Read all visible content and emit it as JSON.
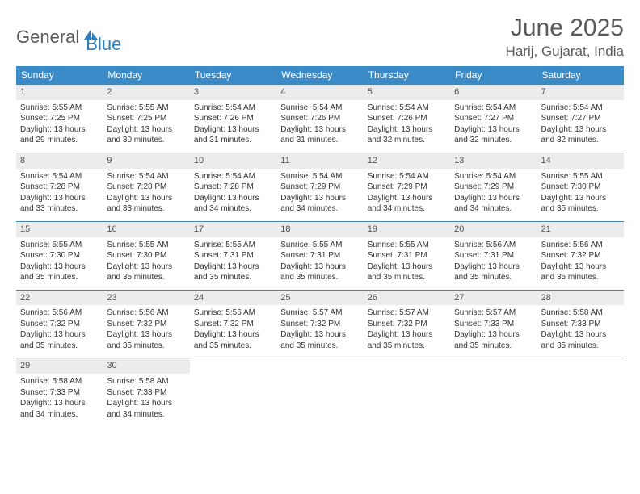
{
  "logo": {
    "general": "General",
    "blue": "Blue",
    "icon_color": "#2f7fbf"
  },
  "title": "June 2025",
  "location": "Harij, Gujarat, India",
  "colors": {
    "header_bg": "#3b8bc9",
    "header_text": "#ffffff",
    "daynum_bg": "#ececec",
    "row_border": "#4a7fa8",
    "text": "#333333",
    "title_text": "#5a5a5a"
  },
  "day_headers": [
    "Sunday",
    "Monday",
    "Tuesday",
    "Wednesday",
    "Thursday",
    "Friday",
    "Saturday"
  ],
  "weeks": [
    [
      {
        "day": 1,
        "sunrise": "5:55 AM",
        "sunset": "7:25 PM",
        "daylight": "13 hours and 29 minutes."
      },
      {
        "day": 2,
        "sunrise": "5:55 AM",
        "sunset": "7:25 PM",
        "daylight": "13 hours and 30 minutes."
      },
      {
        "day": 3,
        "sunrise": "5:54 AM",
        "sunset": "7:26 PM",
        "daylight": "13 hours and 31 minutes."
      },
      {
        "day": 4,
        "sunrise": "5:54 AM",
        "sunset": "7:26 PM",
        "daylight": "13 hours and 31 minutes."
      },
      {
        "day": 5,
        "sunrise": "5:54 AM",
        "sunset": "7:26 PM",
        "daylight": "13 hours and 32 minutes."
      },
      {
        "day": 6,
        "sunrise": "5:54 AM",
        "sunset": "7:27 PM",
        "daylight": "13 hours and 32 minutes."
      },
      {
        "day": 7,
        "sunrise": "5:54 AM",
        "sunset": "7:27 PM",
        "daylight": "13 hours and 32 minutes."
      }
    ],
    [
      {
        "day": 8,
        "sunrise": "5:54 AM",
        "sunset": "7:28 PM",
        "daylight": "13 hours and 33 minutes."
      },
      {
        "day": 9,
        "sunrise": "5:54 AM",
        "sunset": "7:28 PM",
        "daylight": "13 hours and 33 minutes."
      },
      {
        "day": 10,
        "sunrise": "5:54 AM",
        "sunset": "7:28 PM",
        "daylight": "13 hours and 34 minutes."
      },
      {
        "day": 11,
        "sunrise": "5:54 AM",
        "sunset": "7:29 PM",
        "daylight": "13 hours and 34 minutes."
      },
      {
        "day": 12,
        "sunrise": "5:54 AM",
        "sunset": "7:29 PM",
        "daylight": "13 hours and 34 minutes."
      },
      {
        "day": 13,
        "sunrise": "5:54 AM",
        "sunset": "7:29 PM",
        "daylight": "13 hours and 34 minutes."
      },
      {
        "day": 14,
        "sunrise": "5:55 AM",
        "sunset": "7:30 PM",
        "daylight": "13 hours and 35 minutes."
      }
    ],
    [
      {
        "day": 15,
        "sunrise": "5:55 AM",
        "sunset": "7:30 PM",
        "daylight": "13 hours and 35 minutes."
      },
      {
        "day": 16,
        "sunrise": "5:55 AM",
        "sunset": "7:30 PM",
        "daylight": "13 hours and 35 minutes."
      },
      {
        "day": 17,
        "sunrise": "5:55 AM",
        "sunset": "7:31 PM",
        "daylight": "13 hours and 35 minutes."
      },
      {
        "day": 18,
        "sunrise": "5:55 AM",
        "sunset": "7:31 PM",
        "daylight": "13 hours and 35 minutes."
      },
      {
        "day": 19,
        "sunrise": "5:55 AM",
        "sunset": "7:31 PM",
        "daylight": "13 hours and 35 minutes."
      },
      {
        "day": 20,
        "sunrise": "5:56 AM",
        "sunset": "7:31 PM",
        "daylight": "13 hours and 35 minutes."
      },
      {
        "day": 21,
        "sunrise": "5:56 AM",
        "sunset": "7:32 PM",
        "daylight": "13 hours and 35 minutes."
      }
    ],
    [
      {
        "day": 22,
        "sunrise": "5:56 AM",
        "sunset": "7:32 PM",
        "daylight": "13 hours and 35 minutes."
      },
      {
        "day": 23,
        "sunrise": "5:56 AM",
        "sunset": "7:32 PM",
        "daylight": "13 hours and 35 minutes."
      },
      {
        "day": 24,
        "sunrise": "5:56 AM",
        "sunset": "7:32 PM",
        "daylight": "13 hours and 35 minutes."
      },
      {
        "day": 25,
        "sunrise": "5:57 AM",
        "sunset": "7:32 PM",
        "daylight": "13 hours and 35 minutes."
      },
      {
        "day": 26,
        "sunrise": "5:57 AM",
        "sunset": "7:32 PM",
        "daylight": "13 hours and 35 minutes."
      },
      {
        "day": 27,
        "sunrise": "5:57 AM",
        "sunset": "7:33 PM",
        "daylight": "13 hours and 35 minutes."
      },
      {
        "day": 28,
        "sunrise": "5:58 AM",
        "sunset": "7:33 PM",
        "daylight": "13 hours and 35 minutes."
      }
    ],
    [
      {
        "day": 29,
        "sunrise": "5:58 AM",
        "sunset": "7:33 PM",
        "daylight": "13 hours and 34 minutes."
      },
      {
        "day": 30,
        "sunrise": "5:58 AM",
        "sunset": "7:33 PM",
        "daylight": "13 hours and 34 minutes."
      },
      null,
      null,
      null,
      null,
      null
    ]
  ],
  "labels": {
    "sunrise": "Sunrise:",
    "sunset": "Sunset:",
    "daylight": "Daylight:"
  }
}
